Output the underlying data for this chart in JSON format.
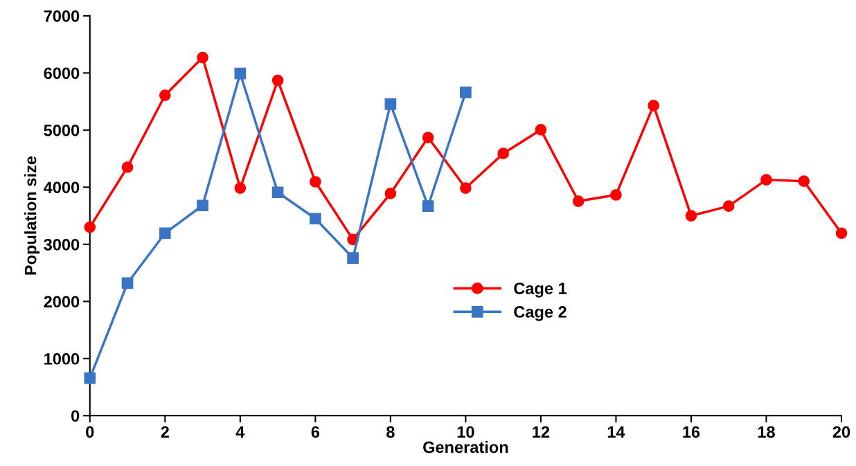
{
  "chart_data": {
    "type": "line",
    "xlabel": "Generation",
    "ylabel": "Population size",
    "xlim": [
      0,
      20
    ],
    "xticks": [
      0,
      2,
      4,
      6,
      8,
      10,
      12,
      14,
      16,
      18,
      20
    ],
    "ylim": [
      0,
      7000
    ],
    "yticks": [
      0,
      1000,
      2000,
      3000,
      4000,
      5000,
      6000,
      7000
    ],
    "grid": false,
    "legend": "lower center",
    "series": [
      {
        "name": "Cage 1",
        "color": "#ff0000",
        "marker": "circle",
        "x": [
          0,
          1,
          2,
          3,
          4,
          5,
          6,
          7,
          8,
          9,
          10,
          11,
          12,
          13,
          14,
          15,
          16,
          17,
          18,
          19,
          20
        ],
        "values": [
          3300,
          4350,
          5610,
          6270,
          3985,
          5870,
          4095,
          3085,
          3890,
          4870,
          3985,
          4590,
          5005,
          3755,
          3865,
          5430,
          3500,
          3670,
          4130,
          4105,
          3195
        ]
      },
      {
        "name": "Cage 2",
        "color": "#3a74c4",
        "marker": "square",
        "x": [
          0,
          1,
          2,
          3,
          4,
          5,
          6,
          7,
          8,
          9,
          10
        ],
        "values": [
          656,
          2320,
          3195,
          3680,
          5990,
          3910,
          3450,
          2760,
          5455,
          3670,
          5660
        ]
      }
    ]
  }
}
